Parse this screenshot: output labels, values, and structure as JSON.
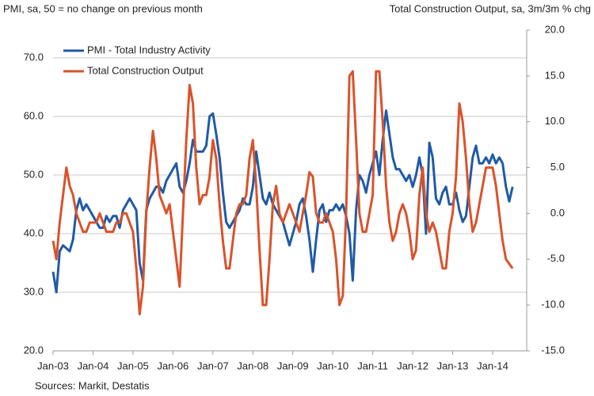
{
  "chart_data": {
    "type": "line",
    "title_left": "PMI, sa, 50 = no change on previous month",
    "title_right": "Total Construction Output, sa, 3m/3m % chg",
    "source": "Sources: Markit, Destatis",
    "categories": [
      "Jan-03",
      null,
      null,
      null,
      null,
      null,
      null,
      null,
      null,
      null,
      null,
      null,
      "Jan-04",
      null,
      null,
      null,
      null,
      null,
      null,
      null,
      null,
      null,
      null,
      null,
      "Jan-05",
      null,
      null,
      null,
      null,
      null,
      null,
      null,
      null,
      null,
      null,
      null,
      "Jan-06",
      null,
      null,
      null,
      null,
      null,
      null,
      null,
      null,
      null,
      null,
      null,
      "Jan-07",
      null,
      null,
      null,
      null,
      null,
      null,
      null,
      null,
      null,
      null,
      null,
      "Jan-08",
      null,
      null,
      null,
      null,
      null,
      null,
      null,
      null,
      null,
      null,
      null,
      "Jan-09",
      null,
      null,
      null,
      null,
      null,
      null,
      null,
      null,
      null,
      null,
      null,
      "Jan-10",
      null,
      null,
      null,
      null,
      null,
      null,
      null,
      null,
      null,
      null,
      null,
      "Jan-11",
      null,
      null,
      null,
      null,
      null,
      null,
      null,
      null,
      null,
      null,
      null,
      "Jan-12",
      null,
      null,
      null,
      null,
      null,
      null,
      null,
      null,
      null,
      null,
      null,
      "Jan-13",
      null,
      null,
      null,
      null,
      null,
      null,
      null,
      null,
      null,
      null,
      null,
      "Jan-14",
      null,
      null,
      null,
      null,
      null,
      null
    ],
    "series": [
      {
        "name": "PMI - Total Industry Activity",
        "color": "#1f5aa6",
        "axis": "y",
        "values": [
          33.5,
          30,
          37,
          38,
          37.5,
          37,
          39,
          44,
          46,
          44,
          45,
          44,
          43,
          42,
          41,
          41,
          43,
          42,
          43,
          43,
          41,
          44,
          45,
          46,
          45,
          44,
          35,
          32,
          44,
          46,
          47,
          48,
          48,
          47,
          49,
          50,
          51,
          52,
          48,
          47,
          49,
          52,
          56,
          54,
          54,
          54,
          55,
          60,
          60.5,
          57,
          53,
          47,
          42,
          41,
          42,
          43,
          44,
          46,
          45,
          45,
          48,
          54,
          50,
          46,
          45,
          47,
          45,
          44,
          43,
          42,
          40,
          38,
          40,
          42,
          45,
          46,
          43,
          39,
          33.5,
          39,
          44,
          45,
          42,
          44,
          44,
          45,
          44,
          45,
          43,
          40,
          32,
          44,
          50,
          49,
          47,
          50,
          52,
          54,
          50,
          56,
          61,
          57,
          53,
          51,
          51,
          50,
          49,
          50,
          48,
          50,
          53,
          50,
          40,
          55.5,
          53,
          46,
          45,
          47,
          48,
          45,
          45,
          47,
          44,
          42,
          43,
          48,
          53,
          55,
          52,
          52,
          53,
          52,
          53.5,
          52,
          53,
          52,
          48,
          45.5,
          48
        ]
      },
      {
        "name": "Total Construction Output",
        "color": "#d9532b",
        "axis": "y2",
        "values": [
          -3,
          -5,
          -1,
          2,
          5,
          3,
          2,
          0,
          -1,
          -2,
          -2,
          -1,
          -1,
          -1,
          0,
          -1,
          -2,
          -2,
          -2,
          -1,
          -1,
          0,
          0,
          -1,
          -2,
          -6,
          -11,
          -8,
          0,
          5,
          9,
          6,
          2,
          1,
          0,
          1,
          -2,
          -5,
          -8,
          0,
          8,
          14,
          12,
          5,
          1,
          2,
          2,
          4,
          8,
          6,
          1,
          -3,
          -6,
          -6,
          -3,
          0,
          1,
          1,
          2,
          6,
          8,
          3,
          -4,
          -10,
          -10,
          -5,
          1,
          3,
          0,
          -1,
          0,
          1,
          0,
          -1,
          -2,
          0,
          2,
          4.5,
          4,
          0,
          -1,
          -1,
          0,
          -1,
          -2,
          -5,
          -10,
          -9,
          0,
          15,
          15.5,
          8,
          0,
          -2,
          -2,
          0,
          2,
          15.5,
          15.5,
          10,
          3,
          -1,
          -3,
          -2,
          0,
          1,
          0,
          -2,
          -5,
          -4,
          2,
          5,
          0,
          -2,
          -1,
          -2,
          -4,
          -6,
          -6,
          -2,
          0,
          4,
          12,
          10,
          6,
          1,
          -2,
          -1,
          1,
          3,
          5,
          5,
          5,
          3,
          0,
          -3,
          -5,
          -5.5,
          -6
        ]
      }
    ],
    "ylim": [
      20,
      70
    ],
    "yticks": [
      {
        "value": 20,
        "label": "20.0"
      },
      {
        "value": 30,
        "label": "30.0"
      },
      {
        "value": 40,
        "label": "40.0"
      },
      {
        "value": 50,
        "label": "50.0"
      },
      {
        "value": 60,
        "label": "60.0"
      },
      {
        "value": 70,
        "label": "70.0"
      }
    ],
    "y2lim": [
      -15,
      20
    ],
    "y2ticks": [
      {
        "value": -15,
        "label": "-15.0"
      },
      {
        "value": -10,
        "label": "-10.0"
      },
      {
        "value": -5,
        "label": "-5.0"
      },
      {
        "value": 0,
        "label": "0.0"
      },
      {
        "value": 5,
        "label": "5.0"
      },
      {
        "value": 10,
        "label": "10.0"
      },
      {
        "value": 15,
        "label": "15.0"
      },
      {
        "value": 20,
        "label": "20.0"
      }
    ],
    "grid": true,
    "legend": "top-left"
  }
}
